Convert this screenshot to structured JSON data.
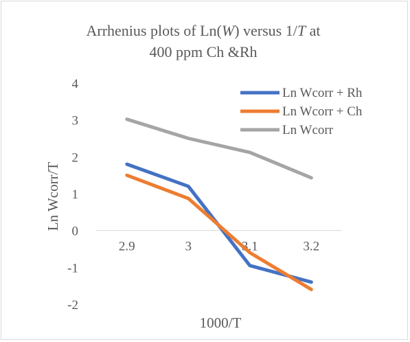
{
  "chart_data": {
    "type": "line",
    "title": {
      "line1_parts": [
        "Arrhenius plots of Ln(",
        "W",
        ") versus 1/",
        "T",
        " at"
      ],
      "line2": "400 ppm Ch &Rh"
    },
    "xlabel": "1000/T",
    "ylabel": "Ln Wcorr/T",
    "categories": [
      "2.9",
      "3",
      "3.1",
      "3.2"
    ],
    "ylim": [
      -2,
      4
    ],
    "yticks": [
      4,
      3,
      2,
      1,
      0,
      -1,
      -2
    ],
    "grid": false,
    "legend_position": "top-right",
    "series": [
      {
        "name": "Ln Wcorr + Rh",
        "color": "#4472C4",
        "values": [
          1.8,
          1.2,
          -0.95,
          -1.4
        ]
      },
      {
        "name": "Ln Wcorr + Ch",
        "color": "#ED7D31",
        "values": [
          1.5,
          0.87,
          -0.6,
          -1.6
        ]
      },
      {
        "name": "Ln Wcorr",
        "color": "#A5A5A5",
        "values": [
          3.02,
          2.5,
          2.12,
          1.43
        ]
      }
    ]
  }
}
